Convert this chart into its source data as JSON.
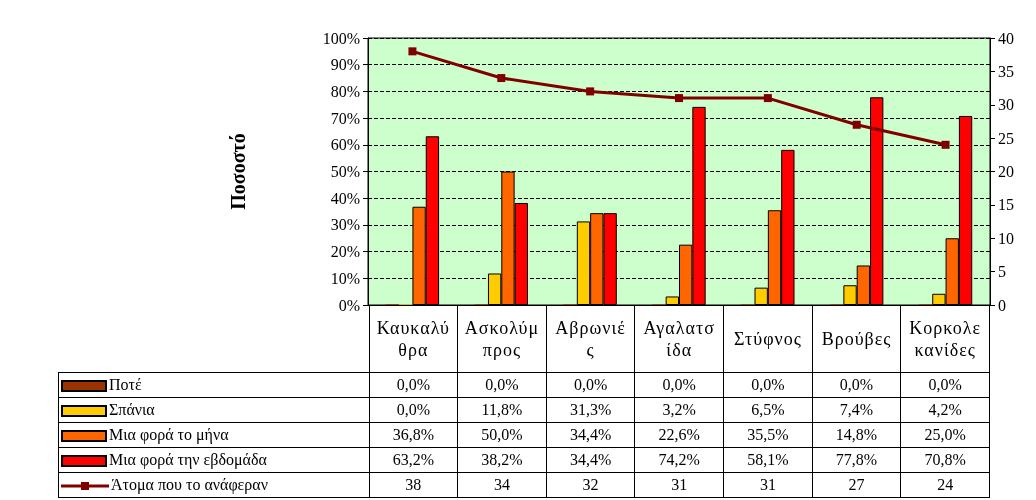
{
  "chart_data": {
    "type": "bar",
    "ylabel": "Ποσοστό",
    "categories": [
      "Καυκαλύθρα",
      "Ασκολύμπρος",
      "Αβρωνιές",
      "Αγαλατσίδα",
      "Στύφνος",
      "Βρούβες",
      "Κορκολεκανίδες"
    ],
    "series": [
      {
        "name": "Ποτέ",
        "color": "#993300",
        "values": [
          0,
          0,
          0,
          0,
          0,
          0,
          0
        ],
        "value_labels": [
          "0,0%",
          "0,0%",
          "0,0%",
          "0,0%",
          "0,0%",
          "0,0%",
          "0,0%"
        ]
      },
      {
        "name": "Σπάνια",
        "color": "#ffcc00",
        "values": [
          0,
          11.8,
          31.3,
          3.2,
          6.5,
          7.4,
          4.2
        ],
        "value_labels": [
          "0,0%",
          "11,8%",
          "31,3%",
          "3,2%",
          "6,5%",
          "7,4%",
          "4,2%"
        ]
      },
      {
        "name": "Μια φορά το μήνα",
        "color": "#ff6600",
        "values": [
          36.8,
          50,
          34.4,
          22.6,
          35.5,
          14.8,
          25
        ],
        "value_labels": [
          "36,8%",
          "50,0%",
          "34,4%",
          "22,6%",
          "35,5%",
          "14,8%",
          "25,0%"
        ]
      },
      {
        "name": "Μια φορά την εβδομάδα",
        "color": "#ff0000",
        "values": [
          63.2,
          38.2,
          34.4,
          74.2,
          58.1,
          77.8,
          70.8
        ],
        "value_labels": [
          "63,2%",
          "38,2%",
          "34,4%",
          "74,2%",
          "58,1%",
          "77,8%",
          "70,8%"
        ]
      },
      {
        "name": "Άτομα που το ανάφεραν",
        "type": "line",
        "axis": "y2",
        "color": "#800000",
        "marker": "square",
        "values": [
          38,
          34,
          32,
          31,
          31,
          27,
          24
        ],
        "value_labels": [
          "38",
          "34",
          "32",
          "31",
          "31",
          "27",
          "24"
        ]
      }
    ],
    "ylim": [
      0,
      100
    ],
    "yticks": [
      {
        "value": 0,
        "label": "0%"
      },
      {
        "value": 10,
        "label": "10%"
      },
      {
        "value": 20,
        "label": "20%"
      },
      {
        "value": 30,
        "label": "30%"
      },
      {
        "value": 40,
        "label": "40%"
      },
      {
        "value": 50,
        "label": "50%"
      },
      {
        "value": 60,
        "label": "60%"
      },
      {
        "value": 70,
        "label": "70%"
      },
      {
        "value": 80,
        "label": "80%"
      },
      {
        "value": 90,
        "label": "90%"
      },
      {
        "value": 100,
        "label": "100%"
      }
    ],
    "y2lim": [
      0,
      40
    ],
    "y2ticks": [
      0,
      5,
      10,
      15,
      20,
      25,
      30,
      35,
      40
    ],
    "grid": "y",
    "legend": "bottom"
  }
}
